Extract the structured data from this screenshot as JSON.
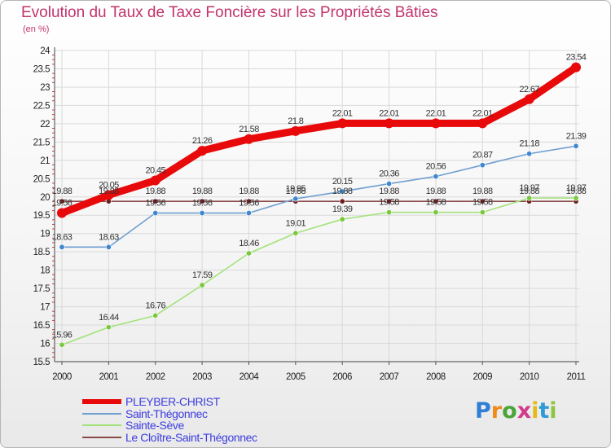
{
  "title": "Evolution du Taux de Taxe Foncière sur les Propriétés Bâties",
  "subtitle": "(en %)",
  "logo": {
    "letters": [
      "P",
      "r",
      "o",
      "x",
      "i",
      "t",
      "i"
    ],
    "colors": [
      "#2f7fd6",
      "#f08a1c",
      "#49a43a",
      "#d23a8c",
      "#e6b81a",
      "#2f9bd6",
      "#8dc63f"
    ]
  },
  "chart_data": {
    "type": "line",
    "x": [
      "2000",
      "2001",
      "2002",
      "2003",
      "2004",
      "2005",
      "2006",
      "2007",
      "2008",
      "2009",
      "2010",
      "2011"
    ],
    "ylim": [
      15.5,
      24
    ],
    "yticks": [
      "15.5",
      "16",
      "16.5",
      "17",
      "17.5",
      "18",
      "18.5",
      "19",
      "19.5",
      "20",
      "20.5",
      "21",
      "21.5",
      "22",
      "22.5",
      "23",
      "23.5",
      "24"
    ],
    "grid": true,
    "legend_position": "bottom-left",
    "series": [
      {
        "name": "PLEYBER-CHRIST",
        "color": "#e8090a",
        "values": [
          19.56,
          20.05,
          20.45,
          21.26,
          21.58,
          21.8,
          22.01,
          22.01,
          22.01,
          22.01,
          22.67,
          23.54
        ],
        "labels": [
          "19.56",
          "20.05",
          "20.45",
          "21.26",
          "21.58",
          "21.8",
          "22.01",
          "22.01",
          "22.01",
          "22.01",
          "22.67",
          "23.54"
        ]
      },
      {
        "name": "Saint-Thégonnec",
        "color": "#6f9fd0",
        "values": [
          18.63,
          18.63,
          19.56,
          19.56,
          19.56,
          19.95,
          20.15,
          20.36,
          20.56,
          20.87,
          21.18,
          21.39
        ],
        "labels": [
          "18.63",
          "18.63",
          "19.56",
          "19.56",
          "19.56",
          "19.95",
          "20.15",
          "20.36",
          "20.56",
          "20.87",
          "21.18",
          "21.39"
        ]
      },
      {
        "name": "Sainte-Sève",
        "color": "#a3e27a",
        "values": [
          15.96,
          16.44,
          16.76,
          17.59,
          18.46,
          19.01,
          19.39,
          19.58,
          19.58,
          19.58,
          19.97,
          19.97
        ],
        "labels": [
          "15.96",
          "16.44",
          "16.76",
          "17.59",
          "18.46",
          "19.01",
          "19.39",
          "19.58",
          "19.58",
          "19.58",
          "19.97",
          "19.97"
        ]
      },
      {
        "name": "Le Cloître-Saint-Thégonnec",
        "color": "#8a4a4a",
        "values": [
          19.88,
          19.88,
          19.88,
          19.88,
          19.88,
          19.88,
          19.88,
          19.88,
          19.88,
          19.88,
          19.88,
          19.88
        ],
        "labels": [
          "19.88",
          "19.88",
          "19.88",
          "19.88",
          "19.88",
          "19.88",
          "19.88",
          "19.88",
          "19.88",
          "19.88",
          "19.88",
          "19.88"
        ]
      }
    ]
  }
}
